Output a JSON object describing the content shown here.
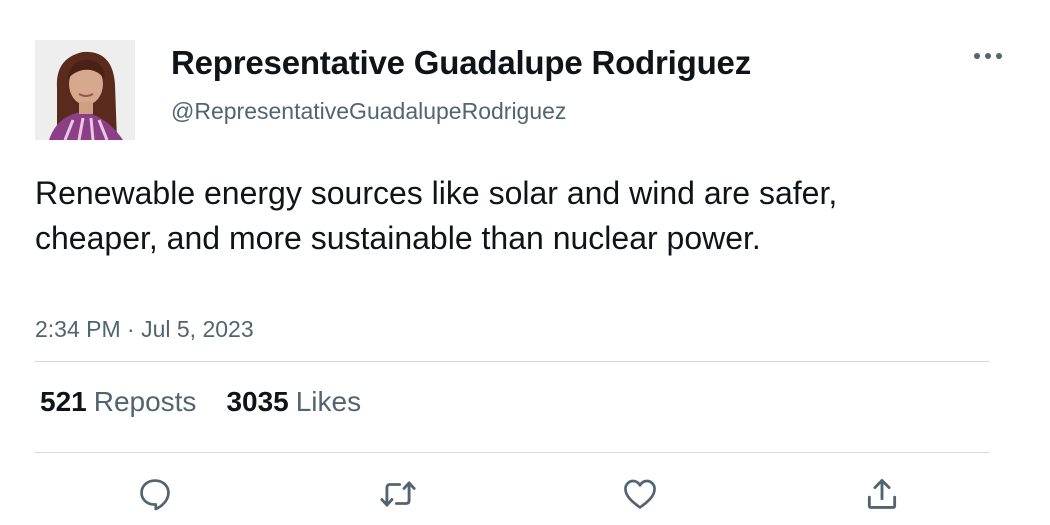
{
  "author": {
    "display_name": "Representative Guadalupe Rodriguez",
    "handle": "@RepresentativeGuadalupeRodriguez",
    "avatar_icon": "profile-photo"
  },
  "tweet": {
    "text": "Renewable energy sources like solar and wind are safer, cheaper, and more sustainable than nuclear power.",
    "timestamp": "2:34 PM · Jul 5, 2023"
  },
  "stats": {
    "reposts_count": "521",
    "reposts_label": "Reposts",
    "likes_count": "3035",
    "likes_label": "Likes"
  },
  "actions": {
    "reply_icon": "speech-bubble-icon",
    "repost_icon": "repost-arrows-icon",
    "like_icon": "heart-icon",
    "share_icon": "share-upload-icon"
  },
  "colors": {
    "text_primary": "#0f1419",
    "text_secondary": "#536471",
    "divider": "#d4d8db"
  }
}
